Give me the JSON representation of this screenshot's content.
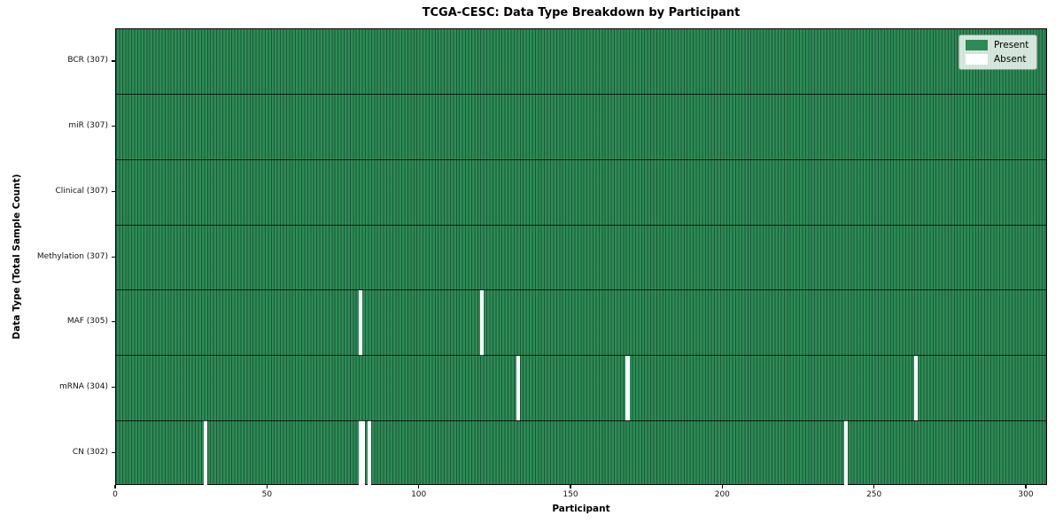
{
  "chart_data": {
    "type": "heatmap",
    "title": "TCGA-CESC: Data Type Breakdown by Participant",
    "xlabel": "Participant",
    "ylabel": "Data Type (Total Sample Count)",
    "x_ticks": [
      0,
      50,
      100,
      150,
      200,
      250,
      300
    ],
    "x_range": [
      0,
      307
    ],
    "n_participants": 307,
    "grid": false,
    "legend_position": "upper right",
    "present_color": "#2e8b57",
    "absent_color": "#ffffff",
    "rows": [
      {
        "name": "BCR",
        "label": "BCR (307)",
        "total": 307,
        "absent_participants": []
      },
      {
        "name": "miR",
        "label": "miR (307)",
        "total": 307,
        "absent_participants": []
      },
      {
        "name": "Clinical",
        "label": "Clinical (307)",
        "total": 307,
        "absent_participants": []
      },
      {
        "name": "Methylation",
        "label": "Methylation (307)",
        "total": 307,
        "absent_participants": []
      },
      {
        "name": "MAF",
        "label": "MAF (305)",
        "total": 305,
        "absent_participants": [
          80,
          120
        ]
      },
      {
        "name": "mRNA",
        "label": "mRNA (304)",
        "total": 304,
        "absent_participants": [
          132,
          168,
          263
        ]
      },
      {
        "name": "CN",
        "label": "CN (302)",
        "total": 302,
        "absent_participants": [
          29,
          80,
          81,
          83,
          240
        ]
      }
    ],
    "legend": [
      {
        "label": "Present",
        "color": "#2e8b57"
      },
      {
        "label": "Absent",
        "color": "#ffffff"
      }
    ]
  }
}
